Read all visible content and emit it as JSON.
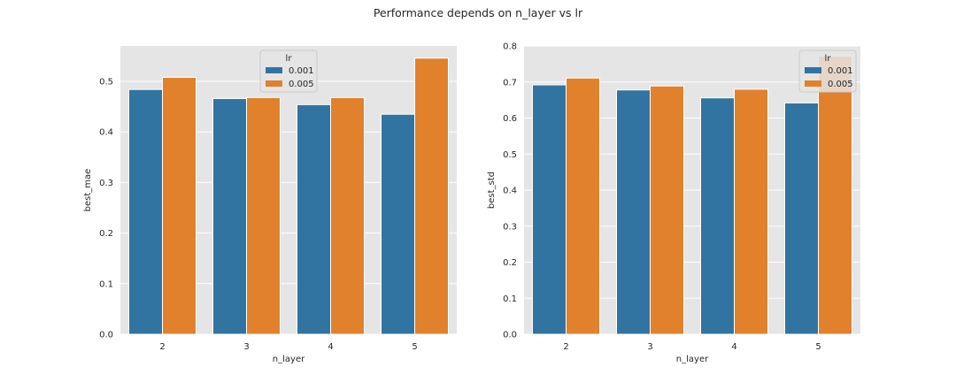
{
  "figure": {
    "title": "Performance depends on n_layer vs lr"
  },
  "colors": {
    "series": [
      "#3274a1",
      "#e1812c"
    ],
    "axes_background": "#e5e5e5",
    "grid": "#ffffff",
    "text": "#262626",
    "legend_background": "#e5e5e5",
    "legend_border": "#cccccc"
  },
  "chart_data": [
    {
      "type": "bar",
      "title": "",
      "xlabel": "n_layer",
      "ylabel": "best_mae",
      "categories": [
        "2",
        "3",
        "4",
        "5"
      ],
      "series": [
        {
          "name": "0.001",
          "values": [
            0.484,
            0.466,
            0.454,
            0.435
          ]
        },
        {
          "name": "0.005",
          "values": [
            0.508,
            0.468,
            0.468,
            0.546
          ]
        }
      ],
      "ylim": [
        0,
        0.57
      ],
      "yticks": [
        0.0,
        0.1,
        0.2,
        0.3,
        0.4,
        0.5
      ],
      "ytick_labels": [
        "0.0",
        "0.1",
        "0.2",
        "0.3",
        "0.4",
        "0.5"
      ],
      "grid": true,
      "legend": {
        "title": "lr",
        "placement": "top-center"
      }
    },
    {
      "type": "bar",
      "title": "",
      "xlabel": "n_layer",
      "ylabel": "best_std",
      "categories": [
        "2",
        "3",
        "4",
        "5"
      ],
      "series": [
        {
          "name": "0.001",
          "values": [
            0.692,
            0.678,
            0.656,
            0.642
          ]
        },
        {
          "name": "0.005",
          "values": [
            0.711,
            0.689,
            0.68,
            0.772
          ]
        }
      ],
      "ylim": [
        0,
        0.8
      ],
      "yticks": [
        0.0,
        0.1,
        0.2,
        0.3,
        0.4,
        0.5,
        0.6,
        0.7,
        0.8
      ],
      "ytick_labels": [
        "0.0",
        "0.1",
        "0.2",
        "0.3",
        "0.4",
        "0.5",
        "0.6",
        "0.7",
        "0.8"
      ],
      "grid": true,
      "legend": {
        "title": "lr",
        "placement": "top-right"
      }
    }
  ]
}
